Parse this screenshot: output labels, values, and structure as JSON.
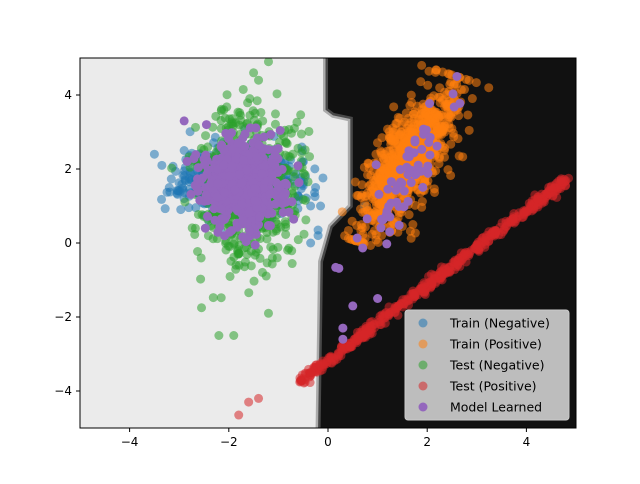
{
  "chart_data": {
    "type": "scatter",
    "title": "",
    "xlabel": "",
    "ylabel": "",
    "xlim": [
      -5,
      5
    ],
    "ylim": [
      -5,
      5
    ],
    "xticks": [
      -4,
      -2,
      0,
      2,
      4
    ],
    "yticks": [
      -4,
      -2,
      0,
      2,
      4
    ],
    "xtick_labels": [
      "−4",
      "−2",
      "0",
      "2",
      "4"
    ],
    "ytick_labels": [
      "−4",
      "−2",
      "0",
      "2",
      "4"
    ],
    "grid": false,
    "legend_position": "lower-right",
    "decision_region": {
      "negative_color": "#ebebeb",
      "positive_color": "#111111",
      "boundary": [
        [
          -0.05,
          5.0
        ],
        [
          -0.05,
          3.6
        ],
        [
          0.1,
          3.45
        ],
        [
          0.45,
          3.35
        ],
        [
          0.45,
          1.0
        ],
        [
          0.05,
          0.45
        ],
        [
          -0.15,
          -0.5
        ],
        [
          -0.2,
          -5.0
        ]
      ]
    },
    "series": [
      {
        "name": "Train (Negative)",
        "color": "#1f77b4",
        "alpha": 0.55,
        "cluster": {
          "center": [
            -1.8,
            1.7
          ],
          "spread": [
            0.55,
            0.45
          ],
          "n": 700,
          "seed": 11
        },
        "outliers": [
          [
            -3.5,
            2.4
          ],
          [
            -3.2,
            1.5
          ],
          [
            -2.9,
            2.5
          ],
          [
            -2.6,
            1.8
          ],
          [
            -2.8,
            1.75
          ],
          [
            -2.5,
            2.3
          ],
          [
            -0.2,
            0.2
          ],
          [
            -0.15,
            1.0
          ],
          [
            -0.2,
            0.35
          ],
          [
            -0.35,
            1.0
          ],
          [
            -0.35,
            0.0
          ],
          [
            -0.25,
            1.5
          ],
          [
            -2.2,
            2.1
          ],
          [
            -0.5,
            1.55
          ]
        ]
      },
      {
        "name": "Train (Positive)",
        "color": "#ff7f0e",
        "alpha": 0.55,
        "line": {
          "from": [
            0.7,
            0.0
          ],
          "to": [
            2.6,
            4.5
          ],
          "width": 0.6,
          "n": 900,
          "seed": 23
        }
      },
      {
        "name": "Test (Negative)",
        "color": "#2ca02c",
        "alpha": 0.55,
        "cluster": {
          "center": [
            -1.6,
            1.6
          ],
          "spread": [
            0.5,
            1.05
          ],
          "n": 600,
          "seed": 37
        },
        "outliers": [
          [
            -1.2,
            4.9
          ],
          [
            -1.5,
            4.6
          ],
          [
            -1.4,
            4.4
          ],
          [
            -2.1,
            3.6
          ],
          [
            -2.2,
            -2.5
          ],
          [
            -1.9,
            -2.5
          ],
          [
            -1.2,
            -1.9
          ],
          [
            -2.55,
            -1.75
          ]
        ]
      },
      {
        "name": "Test (Positive)",
        "color": "#d62728",
        "alpha": 0.55,
        "line": {
          "from": [
            -0.6,
            -3.8
          ],
          "to": [
            4.8,
            1.7
          ],
          "width": 0.12,
          "n": 450,
          "seed": 41
        },
        "outliers": [
          [
            -1.8,
            -4.65
          ],
          [
            -1.4,
            -4.2
          ],
          [
            -1.6,
            -4.3
          ],
          [
            4.85,
            1.75
          ],
          [
            4.7,
            1.7
          ]
        ]
      },
      {
        "name": "Model Learned",
        "color": "#9467bd",
        "alpha": 1.0,
        "cluster": {
          "center": [
            -1.7,
            1.6
          ],
          "spread": [
            0.4,
            0.55
          ],
          "n": 650,
          "seed": 53
        },
        "line": {
          "from": [
            0.5,
            -0.8
          ],
          "to": [
            2.5,
            4.1
          ],
          "width": 0.35,
          "n": 60,
          "seed": 59
        },
        "outliers": [
          [
            -2.9,
            3.3
          ],
          [
            2.6,
            4.5
          ],
          [
            0.3,
            -2.3
          ],
          [
            0.3,
            -2.6
          ],
          [
            0.5,
            -1.7
          ],
          [
            -2.45,
            3.2
          ],
          [
            1.0,
            -1.5
          ]
        ]
      }
    ]
  }
}
